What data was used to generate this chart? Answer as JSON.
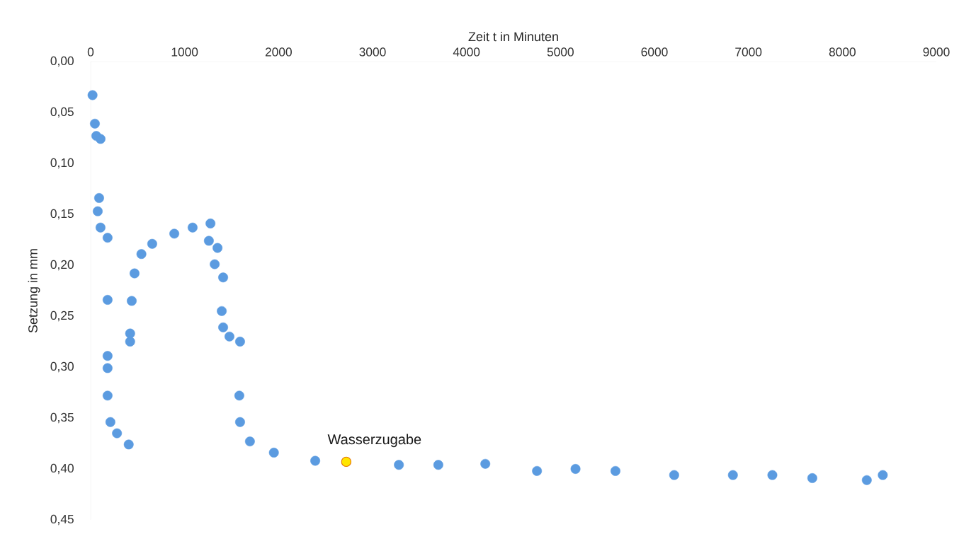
{
  "chart_data": {
    "type": "scatter",
    "xlabel": "Zeit t in Minuten",
    "ylabel": "Setzung in mm",
    "marker": "circle",
    "xlim": [
      0,
      9000
    ],
    "xticks": [
      0,
      1000,
      2000,
      3000,
      4000,
      5000,
      6000,
      7000,
      8000,
      9000
    ],
    "ylim": [
      0.45,
      0
    ],
    "yticks": [
      {
        "value": 0,
        "label": "0,00"
      },
      {
        "value": 0.05,
        "label": "0,05"
      },
      {
        "value": 0.1,
        "label": "0,10"
      },
      {
        "value": 0.15,
        "label": "0,15"
      },
      {
        "value": 0.2,
        "label": "0,20"
      },
      {
        "value": 0.25,
        "label": "0,25"
      },
      {
        "value": 0.3,
        "label": "0,30"
      },
      {
        "value": 0.35,
        "label": "0,35"
      },
      {
        "value": 0.4,
        "label": "0,40"
      },
      {
        "value": 0.45,
        "label": "0,45"
      }
    ],
    "series": [
      {
        "color": "#5b9be0",
        "x": [
          20,
          45,
          60,
          105,
          90,
          75,
          105,
          180,
          180,
          180,
          180,
          180,
          210,
          280,
          405,
          420,
          420,
          437,
          467,
          540,
          655,
          890,
          1085,
          1275,
          1258,
          1350,
          1320,
          1410,
          1395,
          1410,
          1477,
          1590,
          1582,
          1590,
          1695,
          1950,
          2390,
          3280,
          3700,
          4200,
          4750,
          5160,
          5585,
          6210,
          6835,
          7255,
          7680,
          8260,
          8430
        ],
        "values": [
          0.033,
          0.061,
          0.073,
          0.076,
          0.134,
          0.147,
          0.163,
          0.173,
          0.234,
          0.289,
          0.301,
          0.328,
          0.354,
          0.365,
          0.376,
          0.275,
          0.267,
          0.235,
          0.208,
          0.189,
          0.179,
          0.169,
          0.163,
          0.159,
          0.176,
          0.183,
          0.199,
          0.212,
          0.245,
          0.261,
          0.27,
          0.275,
          0.328,
          0.354,
          0.373,
          0.384,
          0.392,
          0.396,
          0.396,
          0.395,
          0.402,
          0.4,
          0.402,
          0.406,
          0.406,
          0.406,
          0.409,
          0.411,
          0.406
        ]
      },
      {
        "color": "#ffe600",
        "x": [
          2720
        ],
        "values": [
          0.393
        ]
      }
    ],
    "annotations": [
      {
        "text": "Wasserzugabe",
        "x": 2720,
        "y": 0.393
      }
    ]
  }
}
